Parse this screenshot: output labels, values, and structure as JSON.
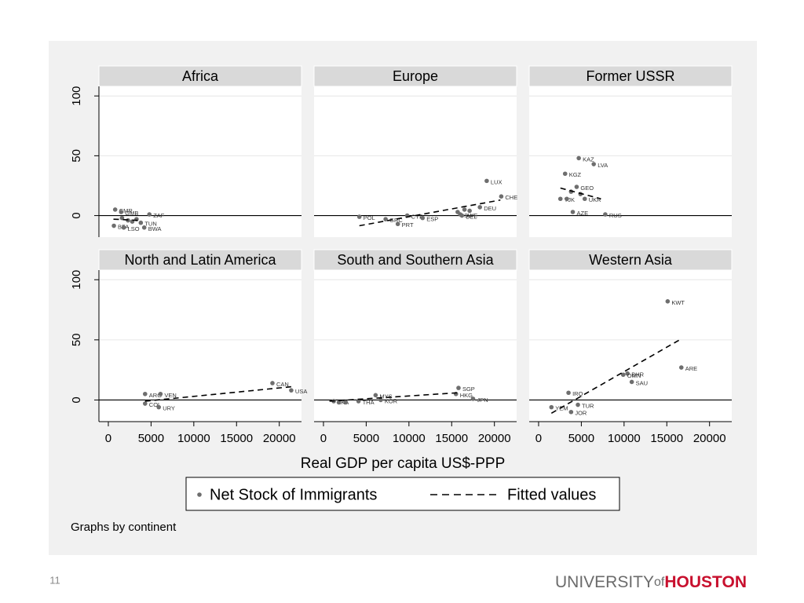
{
  "slide_number": "11",
  "logo": {
    "prefix": "UNIVERSITY",
    "of": "of",
    "name": "HOUSTON"
  },
  "chart_data": {
    "type": "scatter",
    "xlabel": "Real GDP per capita US$-PPP",
    "note": "Graphs by continent",
    "xlim": [
      -1100,
      22600
    ],
    "ylim": [
      -18,
      108
    ],
    "xticks": [
      0,
      5000,
      10000,
      15000,
      20000
    ],
    "yticks": [
      0,
      50,
      100
    ],
    "reference_line": 0,
    "grid": true,
    "legend_position": "bottom",
    "series": [
      {
        "name": "Net Stock of Immigrants",
        "color": "#6e6e6e"
      },
      {
        "name": "Fitted values",
        "color": "#000000"
      }
    ],
    "panels": [
      {
        "title": "Africa",
        "points": {
          "x": [
            800,
            1500,
            4800,
            650,
            1800,
            4200,
            1600,
            2300,
            2800,
            3300,
            3800
          ],
          "values": [
            5,
            3,
            1,
            -8.5,
            -10,
            -10,
            -2,
            -4,
            -5,
            -3,
            -6
          ],
          "labels": [
            "CMR",
            "GMB",
            "ZAF",
            "BFA",
            "LSO",
            "BWA",
            null,
            null,
            null,
            null,
            "TUN"
          ]
        },
        "fit": {
          "x": [
            600,
            3500
          ],
          "values": [
            -3,
            -4
          ]
        }
      },
      {
        "title": "Europe",
        "points": {
          "x": [
            4200,
            7270,
            8700,
            9800,
            11600,
            16200,
            15700,
            16500,
            17100,
            18300,
            20800,
            19100,
            16000
          ],
          "values": [
            -1,
            -3,
            -7,
            0,
            -2,
            0,
            3,
            5,
            4,
            7,
            16,
            29,
            1
          ],
          "labels": [
            "POL",
            "GRC",
            "PRT",
            "CYP",
            "ESP",
            "BEL",
            null,
            null,
            null,
            "DEU",
            "CHE",
            "LUX",
            "SWE"
          ]
        },
        "fit": {
          "x": [
            4200,
            20700
          ],
          "values": [
            -8.5,
            13
          ]
        }
      },
      {
        "title": "Former USSR",
        "points": {
          "x": [
            4700,
            6450,
            3100,
            4450,
            2550,
            5400,
            4000,
            7800,
            3800,
            4900,
            3300
          ],
          "values": [
            48,
            43,
            35,
            24,
            14,
            14,
            3,
            1,
            20,
            18,
            14
          ],
          "labels": [
            "KAZ",
            "LVA",
            "KGZ",
            "GEO",
            "TJK",
            "UKR",
            "AZE",
            "RUS",
            null,
            null,
            null
          ]
        },
        "fit": {
          "x": [
            2550,
            7300
          ],
          "values": [
            23,
            14
          ]
        }
      },
      {
        "title": "North and Latin America",
        "points": {
          "x": [
            4300,
            6100,
            4300,
            5900,
            19200,
            21400
          ],
          "values": [
            5,
            5,
            -3,
            -6,
            14,
            8
          ],
          "labels": [
            "ARG",
            "VEN",
            "COL",
            "URY",
            "CAN",
            "USA"
          ]
        },
        "fit": {
          "x": [
            4300,
            21400
          ],
          "values": [
            -1,
            11
          ]
        }
      },
      {
        "title": "South and Southern Asia",
        "points": {
          "x": [
            1200,
            4100,
            6100,
            6700,
            15800,
            15500,
            17500,
            1800,
            2600
          ],
          "values": [
            -1,
            -1,
            4,
            0,
            10,
            5,
            1,
            -2,
            -2
          ],
          "labels": [
            "LKA",
            "THA",
            "MYS",
            "KOR",
            "SGP",
            "HKG",
            "JPN",
            null,
            null
          ]
        },
        "fit": {
          "x": [
            700,
            15700
          ],
          "values": [
            -1,
            6
          ]
        }
      },
      {
        "title": "Western Asia",
        "points": {
          "x": [
            15100,
            16700,
            10400,
            9900,
            10900,
            3500,
            1500,
            4600,
            3800
          ],
          "values": [
            82,
            27,
            22,
            21,
            15,
            6,
            -6,
            -4,
            -10
          ],
          "labels": [
            "KWT",
            "ARE",
            "BHR",
            "OMN",
            "SAU",
            "IRQ",
            "YEM",
            "TUR",
            "JOR"
          ]
        },
        "fit": {
          "x": [
            1500,
            16500
          ],
          "values": [
            -11,
            50
          ]
        }
      }
    ]
  }
}
